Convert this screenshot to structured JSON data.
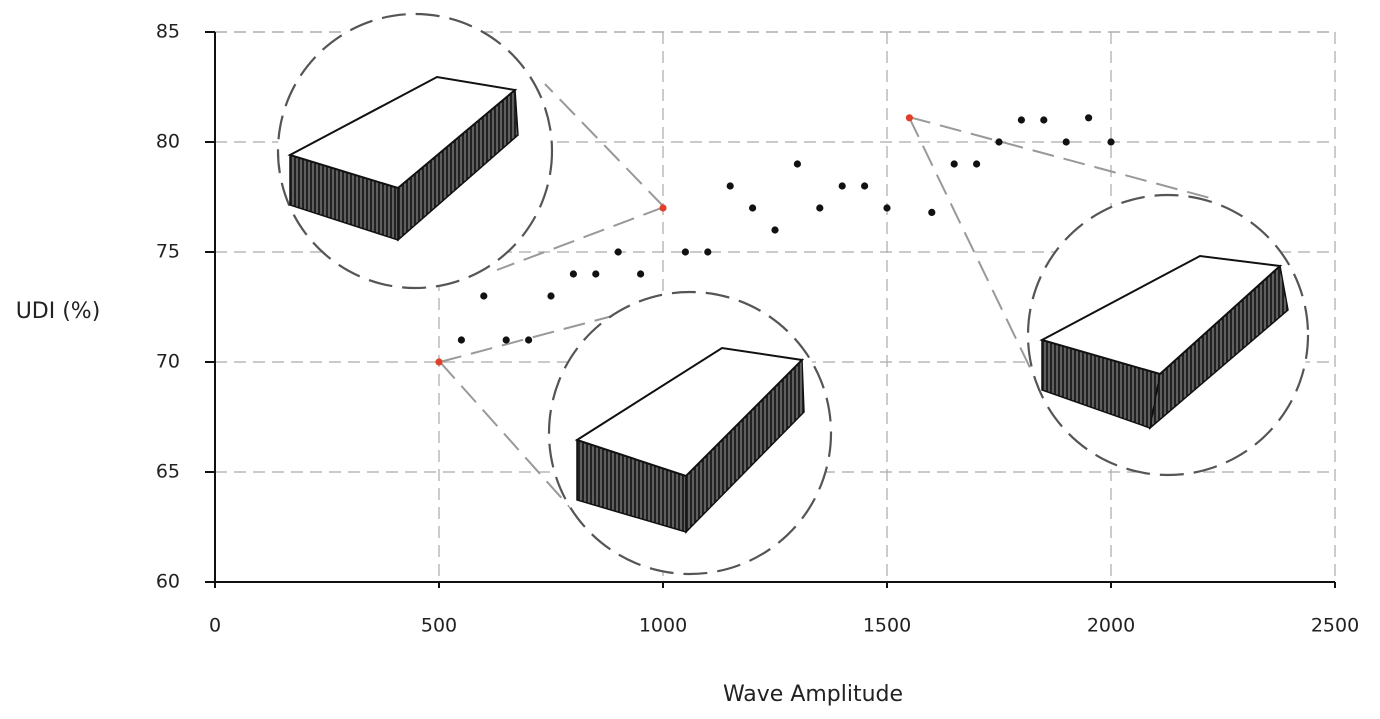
{
  "chart_data": {
    "type": "scatter",
    "x_label": "Wave Amplitude",
    "y_label": "UDI (%)",
    "x": [
      500,
      550,
      600,
      650,
      700,
      750,
      800,
      850,
      900,
      950,
      1000,
      1050,
      1100,
      1150,
      1200,
      1250,
      1300,
      1350,
      1400,
      1450,
      1500,
      1550,
      1600,
      1650,
      1700,
      1750,
      1800,
      1850,
      1900,
      1950,
      2000
    ],
    "values": [
      70,
      71,
      73,
      71,
      71,
      73,
      74,
      74,
      75,
      74,
      77,
      75,
      75,
      78,
      77,
      76,
      79,
      77,
      78,
      78,
      77,
      81.1,
      76.8,
      79,
      79,
      80,
      81,
      81,
      80,
      81.1,
      80
    ],
    "color": "#111111",
    "point_colors": [
      "#e0402a",
      "#111111",
      "#111111",
      "#111111",
      "#111111",
      "#111111",
      "#111111",
      "#111111",
      "#111111",
      "#111111",
      "#e0402a",
      "#111111",
      "#111111",
      "#111111",
      "#111111",
      "#111111",
      "#111111",
      "#111111",
      "#111111",
      "#111111",
      "#111111",
      "#e0402a",
      "#111111",
      "#111111",
      "#111111",
      "#111111",
      "#111111",
      "#111111",
      "#111111",
      "#111111",
      "#111111"
    ],
    "xlim": [
      0,
      2500
    ],
    "xticks": [
      0,
      500,
      1000,
      1500,
      2000,
      2500
    ],
    "ylim": [
      60,
      85
    ],
    "yticks": [
      60,
      65,
      70,
      75,
      80,
      85
    ],
    "grid": true
  }
}
